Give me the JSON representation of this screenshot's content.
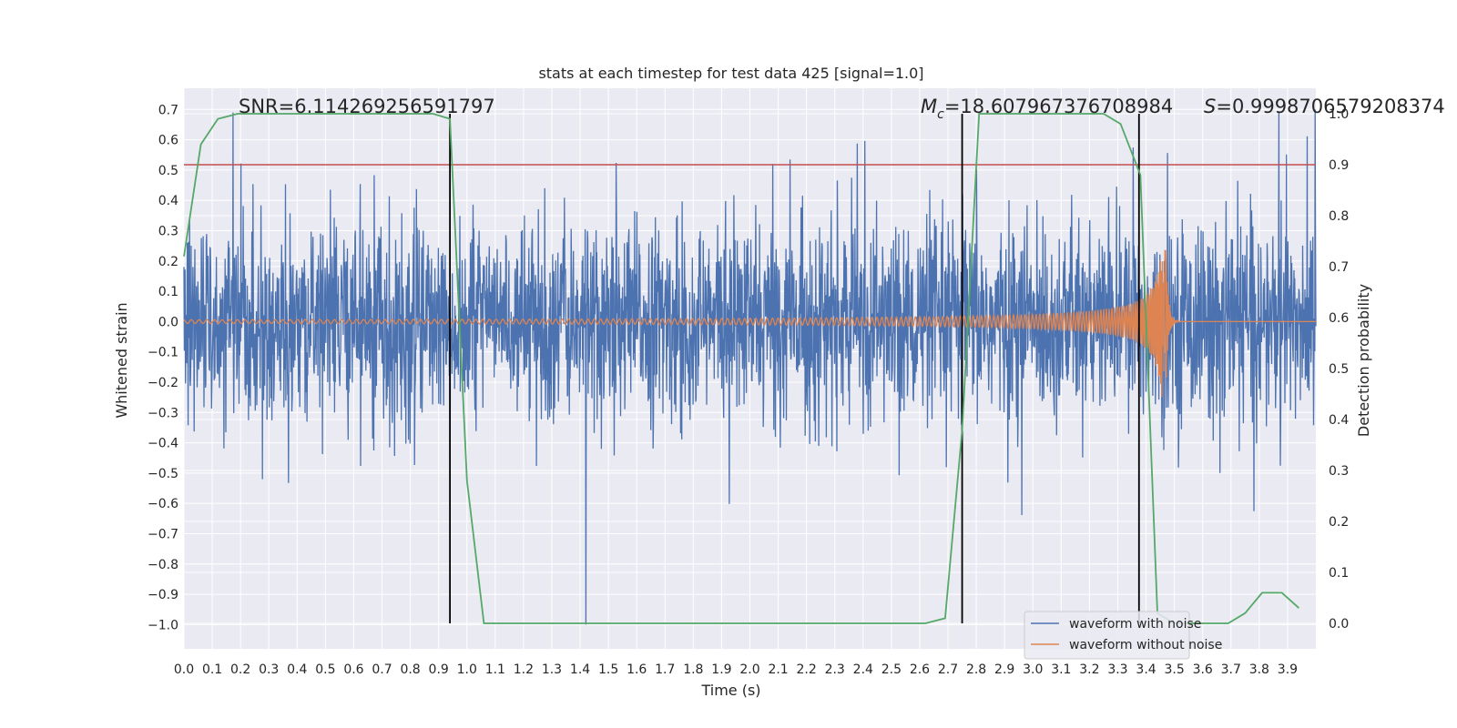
{
  "chart_data": {
    "type": "line",
    "title": "stats at each timestep for test data 425 [signal=1.0]",
    "xlabel": "Time (s)",
    "ylabel": "Whitened strain",
    "y2label": "Detection probability",
    "xlim": [
      0.0,
      4.0
    ],
    "ylim": [
      -1.08,
      0.77
    ],
    "y2lim": [
      -0.05,
      1.05
    ],
    "x_ticks": [
      "0.0",
      "0.1",
      "0.2",
      "0.3",
      "0.4",
      "0.5",
      "0.6",
      "0.7",
      "0.8",
      "0.9",
      "1.0",
      "1.1",
      "1.2",
      "1.3",
      "1.4",
      "1.5",
      "1.6",
      "1.7",
      "1.8",
      "1.9",
      "2.0",
      "2.1",
      "2.2",
      "2.3",
      "2.4",
      "2.5",
      "2.6",
      "2.7",
      "2.8",
      "2.9",
      "3.0",
      "3.1",
      "3.2",
      "3.3",
      "3.4",
      "3.5",
      "3.6",
      "3.7",
      "3.8",
      "3.9"
    ],
    "y_ticks": [
      "0.7",
      "0.6",
      "0.5",
      "0.4",
      "0.3",
      "0.2",
      "0.1",
      "0.0",
      "−0.1",
      "−0.2",
      "−0.3",
      "−0.4",
      "−0.5",
      "−0.6",
      "−0.7",
      "−0.8",
      "−0.9",
      "−1.0"
    ],
    "y2_ticks": [
      "1.0",
      "0.9",
      "0.8",
      "0.7",
      "0.6",
      "0.5",
      "0.4",
      "0.3",
      "0.2",
      "0.1",
      "0.0"
    ],
    "grid": true,
    "legend_position": "lower-right",
    "annotations": {
      "snr": "SNR=6.114269256591797",
      "mc_symbol": "M",
      "mc_sub": "c",
      "mc_value": "=18.607967376708984",
      "s_symbol": "S",
      "s_value": "=0.9998706579208374"
    },
    "series": [
      {
        "name": "waveform with noise",
        "color": "#4c72b0",
        "axis": "left",
        "description_stats": {
          "typical_range": [
            -0.3,
            0.3
          ],
          "peak_max": 0.7,
          "peak_min": -1.0
        }
      },
      {
        "name": "waveform without noise",
        "color": "#dd8452",
        "axis": "left",
        "chirp": {
          "start": 0.0,
          "merger": 3.47,
          "end_amp": 0.25
        }
      },
      {
        "name": "detection probability",
        "color": "#55a868",
        "axis": "right",
        "x": [
          0.0,
          0.06,
          0.12,
          0.19,
          0.25,
          0.31,
          0.38,
          0.44,
          0.5,
          0.56,
          0.62,
          0.69,
          0.75,
          0.81,
          0.88,
          0.94,
          1.0,
          1.06,
          1.12,
          1.19,
          1.25,
          1.5,
          2.0,
          2.5,
          2.62,
          2.69,
          2.75,
          2.81,
          2.88,
          3.0,
          3.25,
          3.31,
          3.38,
          3.44,
          3.5,
          3.56,
          3.62,
          3.69,
          3.75,
          3.81,
          3.88,
          3.94
        ],
        "values": [
          0.72,
          0.94,
          0.99,
          1.0,
          1.0,
          1.0,
          1.0,
          1.0,
          1.0,
          1.0,
          1.0,
          1.0,
          1.0,
          1.0,
          1.0,
          0.99,
          0.28,
          0.0,
          0.0,
          0.0,
          0.0,
          0.0,
          0.0,
          0.0,
          0.0,
          0.01,
          0.38,
          1.0,
          1.0,
          1.0,
          1.0,
          0.98,
          0.88,
          0.02,
          0.0,
          0.0,
          0.0,
          0.0,
          0.02,
          0.06,
          0.06,
          0.03
        ]
      }
    ],
    "threshold": {
      "value": 0.9,
      "axis": "right",
      "color": "#c44e52"
    },
    "vlines_x": [
      0.94,
      2.75,
      3.375
    ],
    "colors": {
      "background": "#eaeaf2",
      "grid": "#ffffff",
      "vline": "#000000"
    }
  }
}
